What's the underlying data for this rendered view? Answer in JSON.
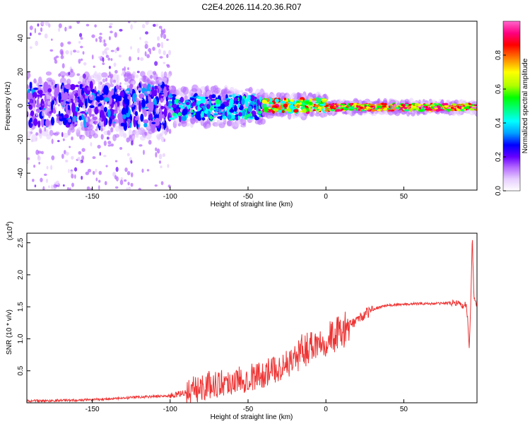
{
  "chart_data": [
    {
      "type": "heatmap",
      "title": "C2E4.2026.114.20.36.R07",
      "xlabel": "Height of straight line (km)",
      "ylabel": "Frequency (Hz)",
      "xlim": [
        -192,
        97
      ],
      "ylim": [
        -50,
        50
      ],
      "xticks": [
        -150,
        -100,
        -50,
        0,
        50
      ],
      "yticks": [
        -40,
        -20,
        0,
        20,
        40
      ],
      "colorbar": {
        "label": "Normalized spectral amplitude",
        "range": [
          0,
          1
        ],
        "ticks": [
          0.0,
          0.2,
          0.4,
          0.6,
          0.8
        ],
        "colormap": [
          "#ffffff",
          "#e6ccff",
          "#b266ff",
          "#6600ff",
          "#0000ff",
          "#00a0ff",
          "#00ffff",
          "#00ff80",
          "#00ff00",
          "#b0ff00",
          "#ffff00",
          "#ff8000",
          "#ff0000",
          "#ff0080",
          "#ff66cc"
        ]
      },
      "bands": [
        {
          "x_range": [
            -192,
            -100
          ],
          "freq_center": 0,
          "freq_halfwidth": 12,
          "amplitude_range": [
            0.1,
            0.35
          ],
          "note": "scattered purple/blue spectral energy with sparse high-frequency streaks"
        },
        {
          "x_range": [
            -100,
            -40
          ],
          "freq_center": -1,
          "freq_halfwidth": 7,
          "amplitude_range": [
            0.2,
            0.5
          ],
          "note": "blue/cyan cluster"
        },
        {
          "x_range": [
            -40,
            0
          ],
          "freq_center": 0,
          "freq_halfwidth": 4,
          "amplitude_range": [
            0.4,
            0.9
          ],
          "note": "green band with red peaks"
        },
        {
          "x_range": [
            0,
            97
          ],
          "freq_center": -1,
          "freq_halfwidth": 2,
          "amplitude_range": [
            0.5,
            1.0
          ],
          "note": "narrow green line with red segments"
        }
      ]
    },
    {
      "type": "line",
      "xlabel": "Height of straight line (km)",
      "ylabel": "SNR (10 * v/v)",
      "y_multiplier": "(x10",
      "y_multiplier_exp": "4",
      "y_multiplier_close": ")",
      "xlim": [
        -192,
        97
      ],
      "ylim": [
        0,
        2.65
      ],
      "xticks": [
        -150,
        -100,
        -50,
        0,
        50
      ],
      "yticks": [
        0.5,
        1.0,
        1.5,
        2.0,
        2.5
      ],
      "line_color": "#ee3333",
      "series": [
        {
          "name": "SNR",
          "x": [
            -192,
            -180,
            -170,
            -160,
            -150,
            -140,
            -130,
            -120,
            -110,
            -100,
            -95,
            -90,
            -85,
            -80,
            -75,
            -70,
            -65,
            -60,
            -55,
            -50,
            -45,
            -40,
            -35,
            -30,
            -25,
            -20,
            -15,
            -10,
            -5,
            0,
            5,
            10,
            15,
            20,
            25,
            30,
            35,
            40,
            50,
            60,
            70,
            80,
            85,
            88,
            90,
            91,
            92,
            93,
            94,
            95,
            97
          ],
          "values": [
            0.03,
            0.03,
            0.04,
            0.04,
            0.05,
            0.06,
            0.07,
            0.09,
            0.1,
            0.11,
            0.13,
            0.16,
            0.2,
            0.24,
            0.28,
            0.3,
            0.32,
            0.34,
            0.36,
            0.4,
            0.42,
            0.45,
            0.5,
            0.55,
            0.6,
            0.7,
            0.8,
            0.9,
            0.95,
            1.0,
            1.05,
            1.1,
            1.2,
            1.3,
            1.38,
            1.45,
            1.5,
            1.52,
            1.54,
            1.55,
            1.55,
            1.56,
            1.57,
            1.5,
            1.55,
            1.3,
            0.85,
            1.55,
            2.65,
            1.6,
            1.55
          ]
        }
      ]
    }
  ]
}
